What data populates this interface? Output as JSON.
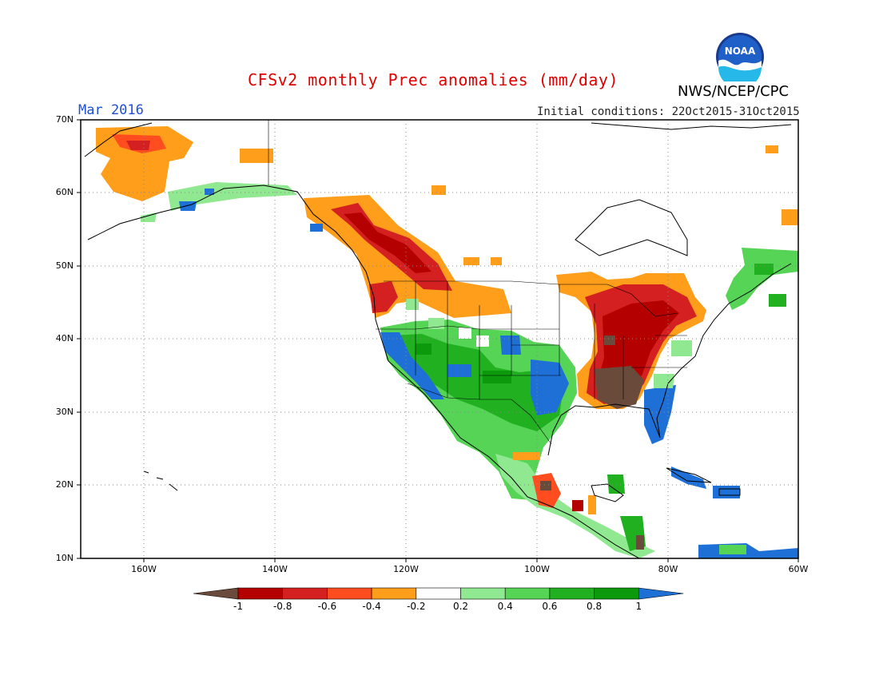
{
  "title": "CFSv2 monthly Prec anomalies (mm/day)",
  "valid_month": "Mar 2016",
  "initial_conditions": "Initial conditions: 22Oct2015-31Oct2015",
  "organization": "NWS/NCEP/CPC",
  "logo_text": "NOAA",
  "logo_icon": "noaa-logo-icon",
  "lat_labels": [
    "70N",
    "60N",
    "50N",
    "40N",
    "30N",
    "20N",
    "10N"
  ],
  "lon_labels": [
    "160W",
    "140W",
    "120W",
    "100W",
    "80W",
    "60W"
  ],
  "colorbar": {
    "tick_labels": [
      "-1",
      "-0.8",
      "-0.6",
      "-0.4",
      "-0.2",
      "0.2",
      "0.4",
      "0.6",
      "0.8",
      "1"
    ],
    "colors": [
      "#6a4a3a",
      "#b50000",
      "#d42020",
      "#ff4d1f",
      "#ff9e1a",
      "#ffffff",
      "#90e890",
      "#55d455",
      "#20b020",
      "#0c9a0c",
      "#1e6fd6"
    ]
  },
  "colors": {
    "title": "#e00000",
    "month": "#1f4fd6",
    "dry_strong": "#6a4a3a",
    "dry": "#b50000",
    "wet_strong": "#1e6fd6"
  }
}
